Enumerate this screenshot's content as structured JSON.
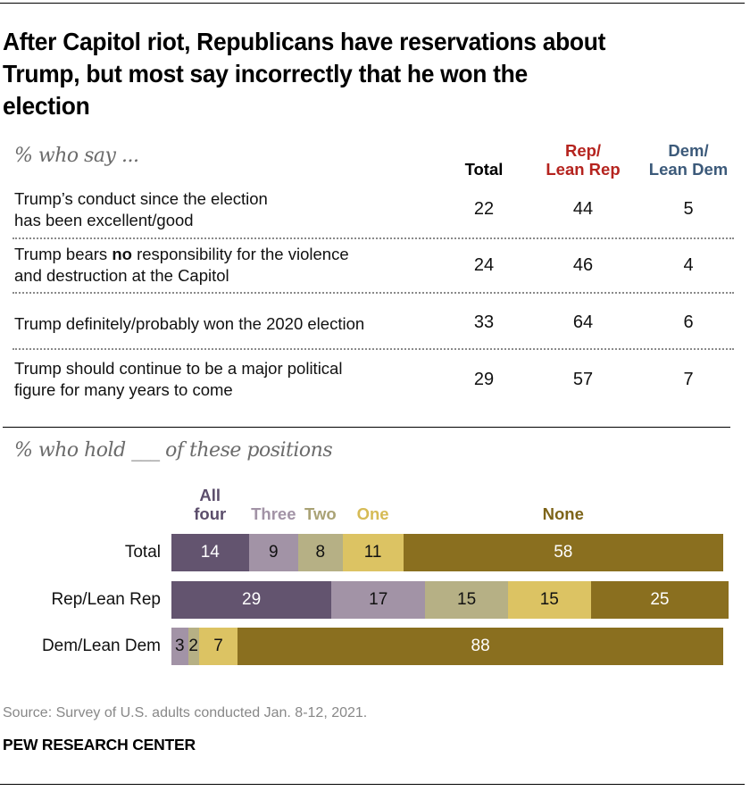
{
  "title": "After Capitol riot, Republicans have reservations about Trump, but most say incorrectly that he won the election",
  "title_lines": [
    "After Capitol riot, Republicans have reservations about",
    "Trump, but most say incorrectly that he won the",
    "election"
  ],
  "table": {
    "subhead": "% who say ...",
    "columns": [
      {
        "label_lines": [
          "",
          "Total"
        ],
        "color": "#000000"
      },
      {
        "label_lines": [
          "Rep/",
          "Lean Rep"
        ],
        "color": "#b5241f"
      },
      {
        "label_lines": [
          "Dem/",
          "Lean Dem"
        ],
        "color": "#3c5a7a"
      }
    ],
    "rows": [
      {
        "text_lines": [
          "Trump’s conduct since the election",
          "has been excellent/good"
        ],
        "values": [
          "22",
          "44",
          "5"
        ]
      },
      {
        "text_lines": [
          "Trump bears ",
          "no",
          " responsibility for the violence",
          "and destruction at the Capitol"
        ],
        "values": [
          "24",
          "46",
          "4"
        ]
      },
      {
        "text_lines": [
          "Trump definitely/probably won the 2020 election"
        ],
        "values": [
          "33",
          "64",
          "6"
        ]
      },
      {
        "text_lines": [
          "Trump should continue to be a major political",
          "figure for many years to come"
        ],
        "values": [
          "29",
          "57",
          "7"
        ]
      }
    ]
  },
  "chart_data": {
    "type": "bar",
    "orientation": "horizontal",
    "stacked": true,
    "title": "% who hold ___ of these positions",
    "categories": [
      "Total",
      "Rep/Lean Rep",
      "Dem/Lean Dem"
    ],
    "series": [
      {
        "name": "All four",
        "label_lines": [
          "All",
          "four"
        ],
        "color": "#63546f",
        "text_color": "#ffffff",
        "values": [
          14,
          29,
          0
        ]
      },
      {
        "name": "Three",
        "label_lines": [
          "Three"
        ],
        "color": "#a293a6",
        "text_color": "#111111",
        "values": [
          9,
          17,
          3
        ]
      },
      {
        "name": "Two",
        "label_lines": [
          "Two"
        ],
        "color": "#b6b085",
        "text_color": "#111111",
        "values": [
          8,
          15,
          2
        ]
      },
      {
        "name": "One",
        "label_lines": [
          "One"
        ],
        "color": "#dcc363",
        "text_color": "#111111",
        "values": [
          11,
          15,
          7
        ]
      },
      {
        "name": "None",
        "label_lines": [
          "None"
        ],
        "color": "#8a6f1f",
        "text_color": "#ffffff",
        "values": [
          58,
          25,
          88
        ]
      }
    ],
    "legend_text_colors": [
      "#5b4d6b",
      "#a293a6",
      "#a9a275",
      "#d6bb55",
      "#7d6418"
    ],
    "xlim": [
      0,
      100
    ],
    "grid": false,
    "legend": "top"
  },
  "footer": {
    "source": "Source: Survey of U.S. adults conducted Jan. 8-12, 2021.",
    "brand": "PEW RESEARCH CENTER"
  }
}
